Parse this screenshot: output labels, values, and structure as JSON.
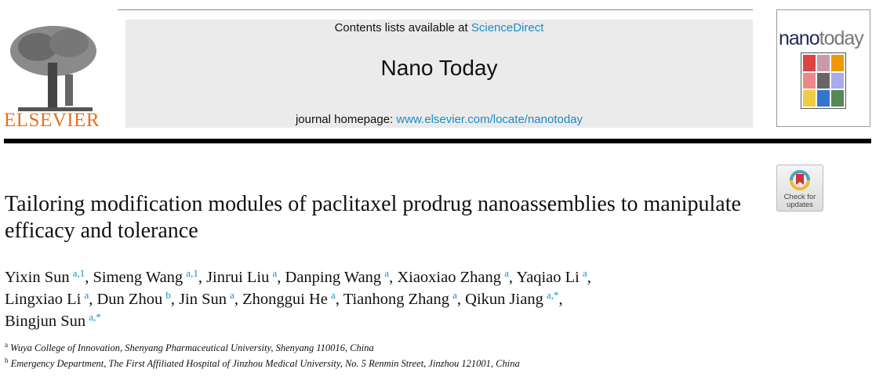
{
  "header": {
    "publisher": "ELSEVIER",
    "contents_prefix": "Contents lists available at ",
    "contents_link": "ScienceDirect",
    "journal_name": "Nano Today",
    "homepage_prefix": "journal homepage: ",
    "homepage_link": "www.elsevier.com/locate/nanotoday",
    "cover_title_a": "nano",
    "cover_title_b": "today",
    "check_updates": "Check for updates"
  },
  "article": {
    "title": "Tailoring modification modules of paclitaxel prodrug nanoassemblies to manipulate efficacy and tolerance",
    "authors": [
      {
        "name": "Yixin Sun",
        "sup": "a,1"
      },
      {
        "name": "Simeng Wang",
        "sup": "a,1"
      },
      {
        "name": "Jinrui Liu",
        "sup": "a"
      },
      {
        "name": "Danping Wang",
        "sup": "a"
      },
      {
        "name": "Xiaoxiao Zhang",
        "sup": "a"
      },
      {
        "name": "Yaqiao Li",
        "sup": "a"
      },
      {
        "name": "Lingxiao Li",
        "sup": "a"
      },
      {
        "name": "Dun Zhou",
        "sup": "b"
      },
      {
        "name": "Jin Sun",
        "sup": "a"
      },
      {
        "name": "Zhonggui He",
        "sup": "a"
      },
      {
        "name": "Tianhong Zhang",
        "sup": "a"
      },
      {
        "name": "Qikun Jiang",
        "sup": "a,*"
      },
      {
        "name": "Bingjun Sun",
        "sup": "a,*"
      }
    ],
    "affiliations": [
      {
        "label": "a",
        "text": "Wuya College of Innovation, Shenyang Pharmaceutical University, Shenyang 110016, China"
      },
      {
        "label": "b",
        "text": "Emergency Department, The First Affiliated Hospital of Jinzhou Medical University, No. 5 Renmin Street, Jinzhou 121001, China"
      }
    ]
  },
  "colors": {
    "link": "#1a8cc8",
    "publisher": "#e9711c",
    "box": "#ebebeb"
  }
}
